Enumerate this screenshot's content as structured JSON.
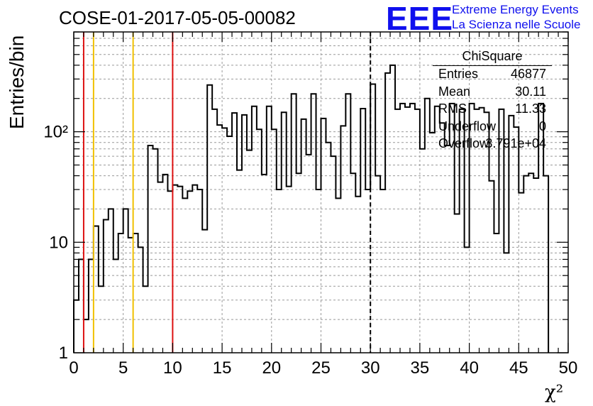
{
  "header": {
    "title": "COSE-01-2017-05-05-00082",
    "logo_text": "EEE",
    "logo_line1": "Extreme Energy Events",
    "logo_line2": "La Scienza nelle Scuole"
  },
  "stats": {
    "title": "ChiSquare",
    "rows": [
      {
        "key": "Entries",
        "value": "46877"
      },
      {
        "key": "Mean",
        "value": "30.11"
      },
      {
        "key": "RMS",
        "value": "11.33"
      },
      {
        "key": "Underflow",
        "value": "0"
      },
      {
        "key": "Overflow",
        "value": "3.791e+04"
      }
    ]
  },
  "colors": {
    "histogram": "#000000",
    "red_lines": "#dd1111",
    "yellow_lines": "#f0c000",
    "logo": "#1010ee"
  },
  "chart_data": {
    "type": "histogram",
    "xlabel": "χ²",
    "ylabel": "Entries/bin",
    "xlim": [
      0,
      50
    ],
    "ylim": [
      1,
      800
    ],
    "log_y": true,
    "grid": true,
    "bin_width": 0.5,
    "x_ticks": [
      "0",
      "5",
      "10",
      "15",
      "20",
      "25",
      "30",
      "35",
      "40",
      "45",
      "50"
    ],
    "y_ticks": [
      {
        "value": 1,
        "label": "1"
      },
      {
        "value": 10,
        "label": "10"
      },
      {
        "value": 100,
        "label": "10²"
      }
    ],
    "values": [
      3,
      7,
      2,
      7,
      14,
      4,
      16,
      20,
      7,
      12,
      20,
      11,
      12,
      9,
      4,
      75,
      70,
      35,
      41,
      29,
      33,
      32,
      25,
      29,
      33,
      30,
      13,
      265,
      160,
      115,
      108,
      91,
      148,
      45,
      142,
      68,
      170,
      105,
      41,
      170,
      105,
      30,
      150,
      32,
      220,
      42,
      130,
      62,
      220,
      30,
      132,
      80,
      60,
      25,
      113,
      220,
      42,
      26,
      162,
      30,
      270,
      40,
      30,
      340,
      400,
      160,
      180,
      167,
      180,
      160,
      70,
      200,
      98,
      170,
      120,
      75,
      180,
      18,
      160,
      9,
      180,
      160,
      165,
      150,
      36,
      12,
      160,
      8,
      140,
      110,
      28,
      40,
      42,
      38,
      180,
      40
    ],
    "vertical_lines": [
      {
        "x": 1,
        "color": "red",
        "style": "solid"
      },
      {
        "x": 2,
        "color": "yellow",
        "style": "solid"
      },
      {
        "x": 6,
        "color": "yellow",
        "style": "solid"
      },
      {
        "x": 10,
        "color": "red",
        "style": "solid"
      },
      {
        "x": 30,
        "color": "black",
        "style": "dashed"
      }
    ]
  }
}
